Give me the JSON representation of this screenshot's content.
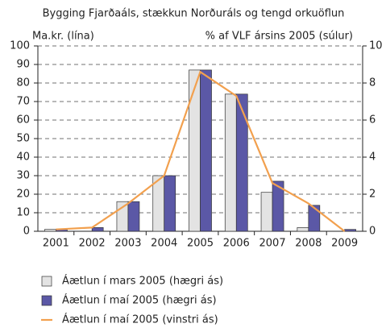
{
  "chart_data": {
    "type": "bar-line",
    "title": "Bygging Fjarðaáls, stækkun Norðuráls og tengd orkuöflun",
    "y_label": "Ma.kr. (lína)",
    "y2_label": "% af VLF ársins 2005 (súlur)",
    "categories": [
      "2001",
      "2002",
      "2003",
      "2004",
      "2005",
      "2006",
      "2007",
      "2008",
      "2009"
    ],
    "series": [
      {
        "name": "Áætlun í mars 2005 (hægri ás)",
        "type": "bar",
        "axis": "y2",
        "color": "#e3e3e3",
        "values": [
          0.1,
          0,
          1.6,
          3.0,
          8.7,
          7.4,
          2.1,
          0.2,
          0
        ]
      },
      {
        "name": "Áætlun í maí 2005 (hægri ás)",
        "type": "bar",
        "axis": "y2",
        "color": "#5b58a6",
        "values": [
          0.1,
          0.2,
          1.6,
          3.0,
          8.7,
          7.4,
          2.7,
          1.4,
          0.1
        ]
      },
      {
        "name": "Áætlun í maí 2005 (vinstri ás)",
        "type": "line",
        "axis": "y",
        "color": "#f2a04e",
        "values": [
          1,
          2,
          15,
          30,
          86,
          73,
          26,
          15,
          0
        ]
      }
    ],
    "ylim": [
      0,
      100
    ],
    "yticks": [
      0,
      10,
      20,
      30,
      40,
      50,
      60,
      70,
      80,
      90,
      100
    ],
    "y2lim": [
      0,
      10
    ],
    "y2ticks": [
      0,
      2,
      4,
      6,
      8,
      10
    ],
    "grid": true
  }
}
